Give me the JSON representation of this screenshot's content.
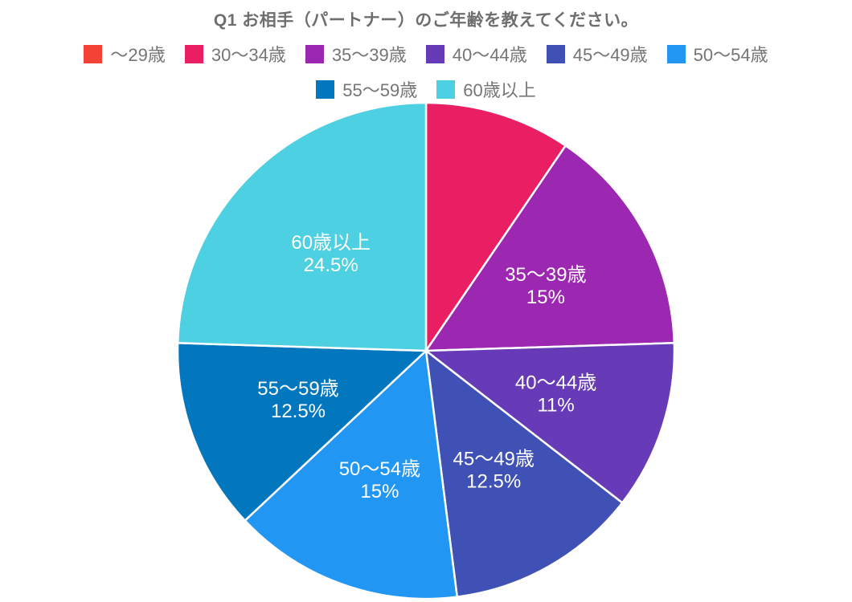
{
  "title": {
    "text": "Q1 お相手（パートナー）のご年齢を教えてください。",
    "color": "#6e6e6e"
  },
  "legend": {
    "position": "top",
    "text_color": "#757575"
  },
  "chart_data": {
    "type": "pie",
    "title": "Q1 お相手（パートナー）のご年齢を教えてください。",
    "order": "clockwise-from-top",
    "start_angle_deg": 0,
    "slice_label_color": "#ffffff",
    "slice_border_color": "#ffffff",
    "slices": [
      {
        "label": "～29歳",
        "value": 0,
        "color": "#F44336",
        "show_label": false
      },
      {
        "label": "30～34歳",
        "value": 9.5,
        "color": "#E91E63",
        "show_label": false
      },
      {
        "label": "35～39歳",
        "value": 15,
        "color": "#9C27B0",
        "show_label": true
      },
      {
        "label": "40～44歳",
        "value": 11,
        "color": "#673AB7",
        "show_label": true
      },
      {
        "label": "45～49歳",
        "value": 12.5,
        "color": "#3F51B5",
        "show_label": true
      },
      {
        "label": "50～54歳",
        "value": 15,
        "color": "#2196F3",
        "show_label": true
      },
      {
        "label": "55～59歳",
        "value": 12.5,
        "color": "#0277BD",
        "show_label": true
      },
      {
        "label": "60歳以上",
        "value": 24.5,
        "color": "#4DD0E1",
        "show_label": true
      }
    ]
  }
}
